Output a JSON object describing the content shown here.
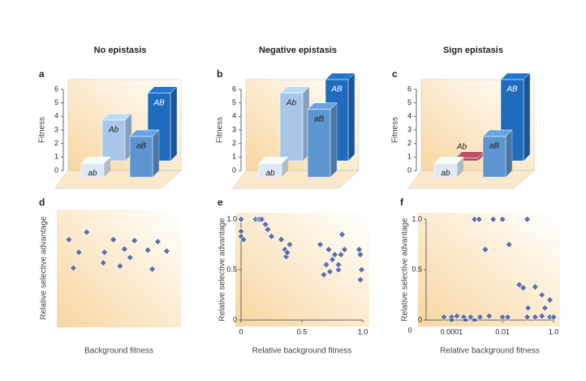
{
  "chart_data": [
    {
      "type": "bar3d",
      "title": "No epistasis",
      "panel_label": "a",
      "ylabel": "Fitness",
      "categories": [
        "ab",
        "Ab",
        "aB",
        "AB"
      ],
      "values": [
        1,
        3,
        3,
        5
      ],
      "colors": [
        "#dde9f6",
        "#a8c7e8",
        "#5d95d0",
        "#1f6cbf"
      ],
      "ylim": [
        0,
        6
      ],
      "yticks": [
        0,
        1,
        2,
        3,
        4,
        5,
        6
      ]
    },
    {
      "type": "bar3d",
      "title": "Negative epistasis",
      "panel_label": "b",
      "ylabel": "Fitness",
      "categories": [
        "ab",
        "Ab",
        "aB",
        "AB"
      ],
      "values": [
        1,
        5,
        5,
        6
      ],
      "colors": [
        "#dde9f6",
        "#a8c7e8",
        "#5d95d0",
        "#1f6cbf"
      ],
      "ylim": [
        0,
        6
      ],
      "yticks": [
        0,
        1,
        2,
        3,
        4,
        5,
        6
      ]
    },
    {
      "type": "bar3d",
      "title": "Sign epistasis",
      "panel_label": "c",
      "ylabel": "Fitness",
      "categories": [
        "ab",
        "Ab",
        "aB",
        "AB"
      ],
      "values": [
        1,
        0.2,
        3,
        6
      ],
      "colors": [
        "#dde9f6",
        "#b0485a",
        "#5d95d0",
        "#1f6cbf"
      ],
      "ylim": [
        0,
        6
      ],
      "yticks": [
        0,
        1,
        2,
        3,
        4,
        5,
        6
      ]
    },
    {
      "type": "scatter",
      "panel_label": "d",
      "xlabel": "Background fitness",
      "ylabel": "Relative selective advantage",
      "xlim": [
        0,
        1
      ],
      "ylim": [
        0,
        1
      ],
      "series": [
        {
          "marker": "diamond",
          "color": "#5b6fa8",
          "x": [
            0.05,
            0.09,
            0.14,
            0.21,
            0.36,
            0.37,
            0.45,
            0.51,
            0.55,
            0.6,
            0.64,
            0.76,
            0.8,
            0.85,
            0.93
          ],
          "values": [
            0.77,
            0.5,
            0.65,
            0.84,
            0.55,
            0.65,
            0.77,
            0.52,
            0.68,
            0.6,
            0.76,
            0.67,
            0.49,
            0.75,
            0.66
          ]
        }
      ]
    },
    {
      "type": "scatter",
      "panel_label": "e",
      "xlabel": "Relative background fitness",
      "ylabel": "Relative selective advantage",
      "xlim": [
        0,
        1
      ],
      "ylim": [
        0,
        1
      ],
      "xticks": [
        0,
        0.5,
        {
          "value": 1,
          "label": "1.0"
        }
      ],
      "yticks": [
        0,
        0.5,
        {
          "value": 1,
          "label": "1.0"
        }
      ],
      "series": [
        {
          "marker": "diamond",
          "color": "#5b6fa8",
          "x": [
            0,
            0,
            0,
            0.02,
            0.12,
            0.15,
            0.17,
            0.2,
            0.22,
            0.25,
            0.33,
            0.36,
            0.37,
            0.38,
            0.4,
            0.65,
            0.68,
            0.7,
            0.72,
            0.73,
            0.75,
            0.77,
            0.8,
            0.8,
            0.82,
            0.83,
            0.85,
            0.97,
            0.98,
            0.98,
            0.99
          ],
          "values": [
            1,
            0.88,
            0.83,
            0.8,
            1,
            1,
            1,
            0.95,
            0.9,
            0.83,
            0.8,
            0.7,
            0.63,
            0.67,
            0.75,
            0.75,
            0.45,
            0.55,
            0.7,
            0.48,
            0.6,
            0.65,
            0.5,
            0.55,
            0.65,
            0.85,
            0.7,
            0.7,
            0.65,
            0.4,
            0.5
          ]
        }
      ]
    },
    {
      "type": "scatter",
      "panel_label": "f",
      "xlabel": "Relative background fitness",
      "ylabel": "Relative selective advantage",
      "xscale": "log",
      "xlim": [
        1e-05,
        1
      ],
      "ylim": [
        0,
        1
      ],
      "x_origin_label": "0",
      "xticks": [
        0.0001,
        0.01,
        {
          "value": 1,
          "label": "1.0"
        }
      ],
      "yticks": [
        0,
        0.5,
        {
          "value": 1,
          "label": "1.0"
        }
      ],
      "series": [
        {
          "marker": "diamond",
          "color": "#5b6fa8",
          "x": [
            5e-05,
            0.0001,
            0.00016,
            0.0003,
            0.00056,
            0.0013,
            0.003,
            0.01,
            0.016,
            0.093,
            0.19,
            0.35,
            0.72,
            1,
            0.0008,
            0.0012,
            0.0043,
            0.01,
            0.093,
            0.0021,
            0.018,
            0.045,
            0.065,
            0.1,
            0.19,
            0.35,
            0.46,
            0.72
          ],
          "values": [
            0.03,
            0.03,
            0.04,
            0.03,
            0.03,
            0.03,
            0.04,
            0.03,
            0.03,
            0.03,
            0.03,
            0.04,
            0.03,
            0.03,
            1,
            1,
            1,
            1,
            1,
            0.7,
            0.75,
            0.35,
            0.32,
            0.12,
            0.33,
            0.25,
            0.12,
            0.2
          ]
        },
        {
          "marker": "square",
          "color": "#3f5a9e",
          "x": [
            0.0001,
            0.00035,
            0.0008
          ],
          "values": [
            0,
            0,
            0
          ]
        }
      ]
    }
  ]
}
